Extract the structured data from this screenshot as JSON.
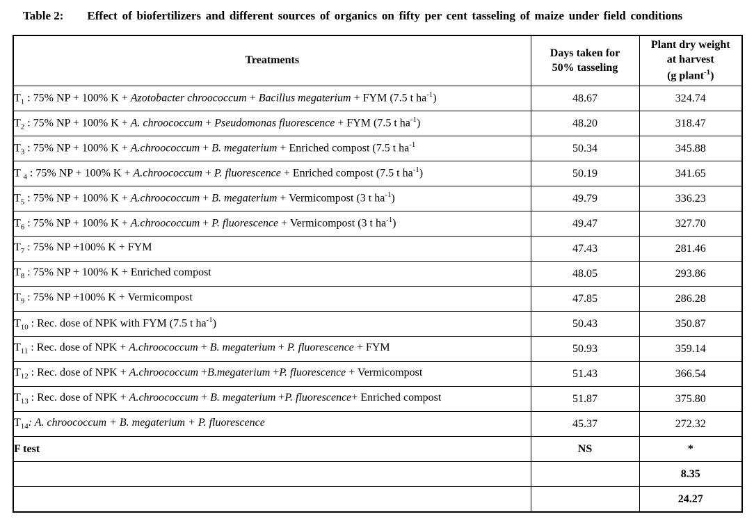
{
  "title": {
    "label": "Table 2:",
    "text": "Effect of biofertilizers and different sources of organics on fifty per cent tasseling of maize under field conditions"
  },
  "table": {
    "columns": [
      {
        "id": "treatments",
        "segments": [
          {
            "t": "Treatments"
          }
        ]
      },
      {
        "id": "days",
        "segments": [
          {
            "t": "Days taken for"
          },
          {
            "s": "br"
          },
          {
            "t": "50% tasseling"
          }
        ]
      },
      {
        "id": "weight",
        "segments": [
          {
            "t": "Plant dry weight"
          },
          {
            "s": "br"
          },
          {
            "t": "at harvest"
          },
          {
            "s": "br"
          },
          {
            "t": "(g plant"
          },
          {
            "t": "-1",
            "s": "sup"
          },
          {
            "t": ")"
          }
        ]
      }
    ],
    "rows": [
      {
        "treatment": [
          {
            "t": "T"
          },
          {
            "t": "1",
            "s": "sub"
          },
          {
            "t": " : 75% NP + 100% K +  "
          },
          {
            "t": "Azotobacter chroococcum",
            "s": "i"
          },
          {
            "t": " + "
          },
          {
            "t": "Bacillus megaterium",
            "s": "i"
          },
          {
            "t": " + FYM  (7.5 t ha"
          },
          {
            "t": "-1",
            "s": "sup"
          },
          {
            "t": ")"
          }
        ],
        "days": "48.67",
        "weight": "324.74",
        "bold": false
      },
      {
        "treatment": [
          {
            "t": "T"
          },
          {
            "t": "2",
            "s": "sub"
          },
          {
            "t": " : 75% NP + 100% K + "
          },
          {
            "t": "A. chroococcum",
            "s": "i"
          },
          {
            "t": " + "
          },
          {
            "t": "Pseudomonas  fluorescence",
            "s": "i"
          },
          {
            "t": " +  FYM (7.5 t ha"
          },
          {
            "t": "-1",
            "s": "sup"
          },
          {
            "t": ")"
          }
        ],
        "days": "48.20",
        "weight": "318.47",
        "bold": false
      },
      {
        "treatment": [
          {
            "t": "T"
          },
          {
            "t": "3",
            "s": "sub"
          },
          {
            "t": " : 75% NP + 100% K + "
          },
          {
            "t": "A.chroococcum",
            "s": "i"
          },
          {
            "t": " + "
          },
          {
            "t": "B. megaterium",
            "s": "i"
          },
          {
            "t": " + Enriched compost (7.5 t ha"
          },
          {
            "t": "-1",
            "s": "sup"
          }
        ],
        "days": "50.34",
        "weight": "345.88",
        "bold": false
      },
      {
        "treatment": [
          {
            "t": "T "
          },
          {
            "t": "4",
            "s": "sub"
          },
          {
            "t": " : 75% NP + 100% K +  "
          },
          {
            "t": "A.chroococcum",
            "s": "i"
          },
          {
            "t": " + "
          },
          {
            "t": "P. fluorescence",
            "s": "i"
          },
          {
            "t": " + Enriched compost (7.5 t ha"
          },
          {
            "t": "-1",
            "s": "sup"
          },
          {
            "t": ")"
          }
        ],
        "days": "50.19",
        "weight": "341.65",
        "bold": false
      },
      {
        "treatment": [
          {
            "t": "T"
          },
          {
            "t": "5",
            "s": "sub"
          },
          {
            "t": " : 75% NP + 100% K + "
          },
          {
            "t": "A.chroococcum",
            "s": "i"
          },
          {
            "t": " + "
          },
          {
            "t": "B. megaterium",
            "s": "i"
          },
          {
            "t": " + Vermicompost (3 t ha"
          },
          {
            "t": "-1",
            "s": "sup"
          },
          {
            "t": ")"
          }
        ],
        "days": "49.79",
        "weight": "336.23",
        "bold": false
      },
      {
        "treatment": [
          {
            "t": "T"
          },
          {
            "t": "6",
            "s": "sub"
          },
          {
            "t": " : 75% NP +  100% K + "
          },
          {
            "t": "A.chroococcum",
            "s": "i"
          },
          {
            "t": " + "
          },
          {
            "t": "P. fluorescence",
            "s": "i"
          },
          {
            "t": " + Vermicompost (3 t ha"
          },
          {
            "t": "-1",
            "s": "sup"
          },
          {
            "t": ")"
          }
        ],
        "days": "49.47",
        "weight": "327.70",
        "bold": false
      },
      {
        "treatment": [
          {
            "t": "T"
          },
          {
            "t": "7",
            "s": "sub"
          },
          {
            "t": " : 75% NP +100% K +  FYM"
          }
        ],
        "days": "47.43",
        "weight": "281.46",
        "bold": false
      },
      {
        "treatment": [
          {
            "t": "T"
          },
          {
            "t": "8",
            "s": "sub"
          },
          {
            "t": " : 75% NP + 100% K +  Enriched compost"
          }
        ],
        "days": "48.05",
        "weight": "293.86",
        "bold": false
      },
      {
        "treatment": [
          {
            "t": "T"
          },
          {
            "t": "9",
            "s": "sub"
          },
          {
            "t": " : 75% NP +100% K + Vermicompost"
          }
        ],
        "days": "47.85",
        "weight": "286.28",
        "bold": false
      },
      {
        "treatment": [
          {
            "t": "T"
          },
          {
            "t": "10",
            "s": "sub"
          },
          {
            "t": " : Rec. dose of NPK with FYM (7.5 t ha"
          },
          {
            "t": "-1",
            "s": "sup"
          },
          {
            "t": ")"
          }
        ],
        "days": "50.43",
        "weight": "350.87",
        "bold": false
      },
      {
        "treatment": [
          {
            "t": "T"
          },
          {
            "t": "11",
            "s": "sub"
          },
          {
            "t": " : Rec. dose of NPK + "
          },
          {
            "t": "A.chroococcum",
            "s": "i"
          },
          {
            "t": " + "
          },
          {
            "t": "B. megaterium",
            "s": "i"
          },
          {
            "t": " + "
          },
          {
            "t": "P. fluorescence",
            "s": "i"
          },
          {
            "t": "  +    FYM"
          }
        ],
        "days": "50.93",
        "weight": "359.14",
        "bold": false
      },
      {
        "treatment": [
          {
            "t": "T"
          },
          {
            "t": "12",
            "s": "sub"
          },
          {
            "t": " : Rec. dose of NPK  + "
          },
          {
            "t": "A.chroococcum",
            "s": "i"
          },
          {
            "t": " +"
          },
          {
            "t": "B.megaterium",
            "s": "i"
          },
          {
            "t": " +"
          },
          {
            "t": "P. fluorescence",
            "s": "i"
          },
          {
            "t": " + Vermicompost"
          }
        ],
        "days": "51.43",
        "weight": "366.54",
        "bold": false
      },
      {
        "treatment": [
          {
            "t": "T"
          },
          {
            "t": "13",
            "s": "sub"
          },
          {
            "t": " : Rec. dose of NPK  + "
          },
          {
            "t": "A.chroococcum",
            "s": "i"
          },
          {
            "t": " + "
          },
          {
            "t": "B. megaterium",
            "s": "i"
          },
          {
            "t": " +"
          },
          {
            "t": "P. fluorescence",
            "s": "i"
          },
          {
            "t": "+ Enriched compost"
          }
        ],
        "days": "51.87",
        "weight": "375.80",
        "bold": false
      },
      {
        "treatment": [
          {
            "t": "T"
          },
          {
            "t": "14",
            "s": "sub"
          },
          {
            "t": ": A. chroococcum + B. megaterium + P. fluorescence",
            "s": "i"
          }
        ],
        "days": "45.37",
        "weight": "272.32",
        "bold": false
      },
      {
        "treatment": [
          {
            "t": "F test",
            "s": "b"
          }
        ],
        "days": "NS",
        "weight": "*",
        "bold": true
      },
      {
        "treatment": [],
        "days": "",
        "weight": "8.35",
        "bold": true
      },
      {
        "treatment": [],
        "days": "",
        "weight": "24.27",
        "bold": true
      }
    ]
  }
}
